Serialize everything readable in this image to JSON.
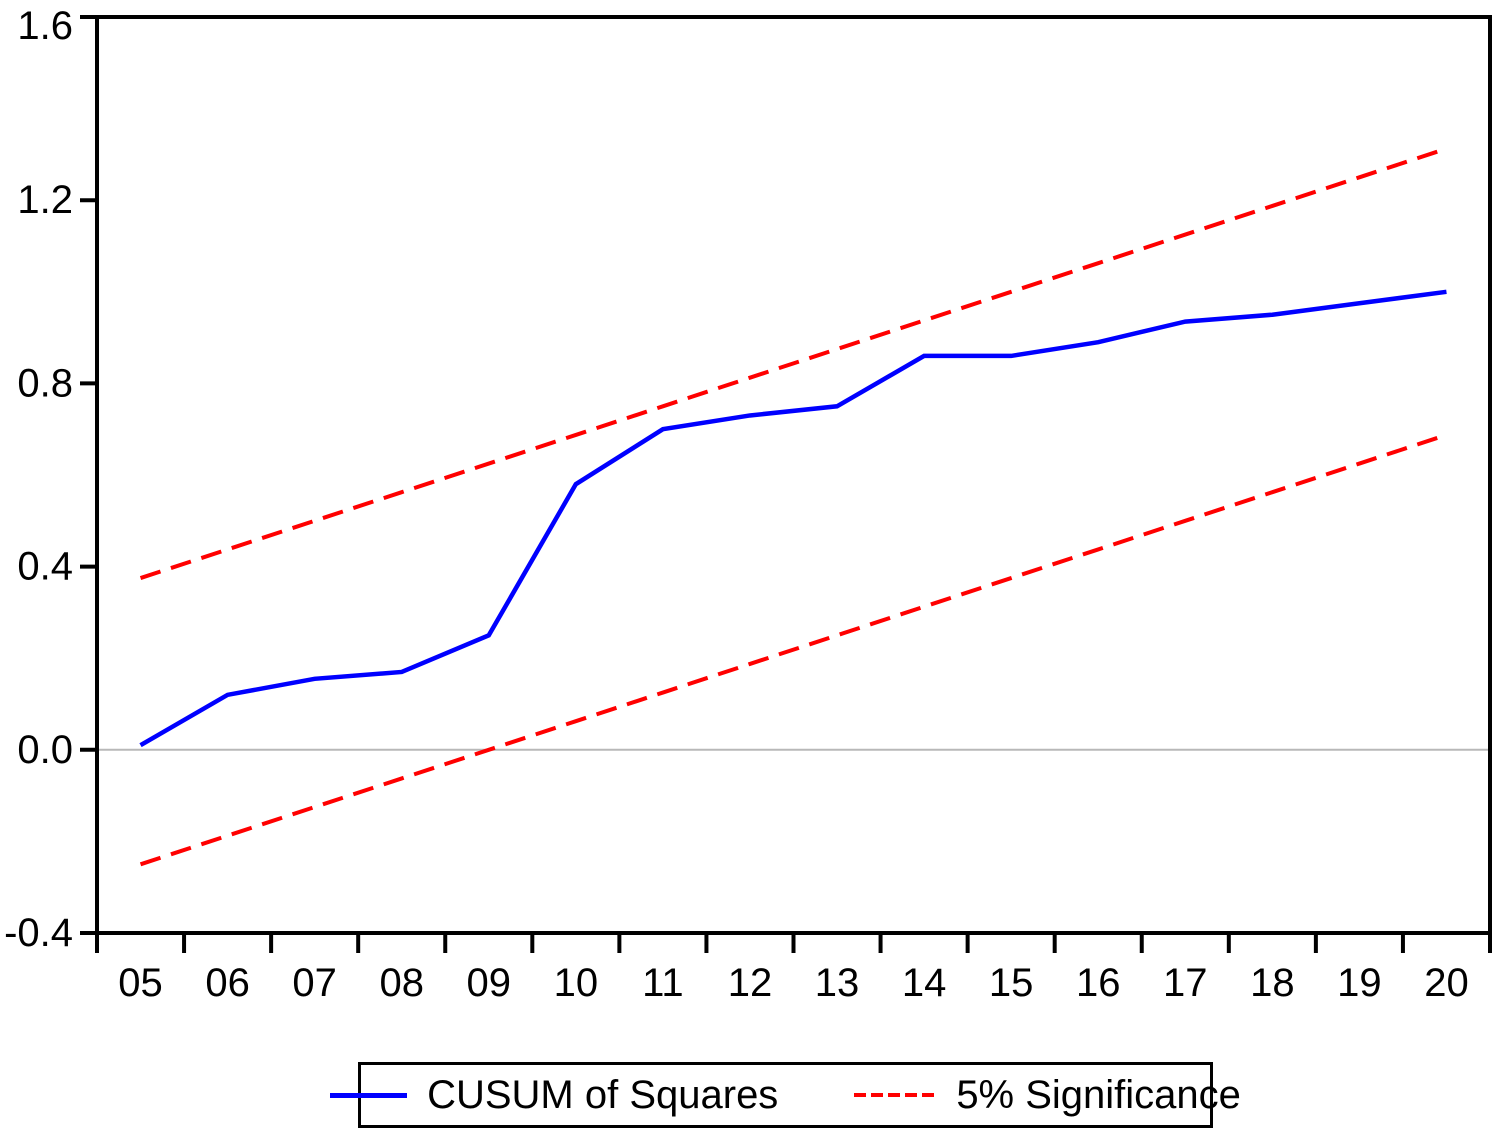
{
  "figure": {
    "title": "",
    "legend": {
      "position": "bottom",
      "items": [
        {
          "label": "CUSUM of Squares",
          "color": "#0000ff",
          "style": "solid"
        },
        {
          "label": "5% Significance",
          "color": "#ff0000",
          "style": "dashed"
        }
      ]
    }
  },
  "chart_data": {
    "type": "line",
    "title": "",
    "xlabel": "",
    "ylabel": "",
    "x": [
      "05",
      "06",
      "07",
      "08",
      "09",
      "10",
      "11",
      "12",
      "13",
      "14",
      "15",
      "16",
      "17",
      "18",
      "19",
      "20"
    ],
    "series": [
      {
        "name": "CUSUM of Squares",
        "color": "#0000ff",
        "style": "solid",
        "width": 4.5,
        "values": [
          0.01,
          0.12,
          0.155,
          0.17,
          0.25,
          0.58,
          0.7,
          0.73,
          0.75,
          0.86,
          0.86,
          0.89,
          0.935,
          0.95,
          0.975,
          1.0
        ]
      },
      {
        "name": "5% Significance (upper bound)",
        "color": "#ff0000",
        "style": "dashed",
        "width": 4,
        "values": [
          0.375,
          0.4375,
          0.5,
          0.5625,
          0.625,
          0.6875,
          0.75,
          0.8125,
          0.875,
          0.9375,
          1.0,
          1.0625,
          1.125,
          1.1875,
          1.25,
          1.3125
        ]
      },
      {
        "name": "5% Significance (lower bound)",
        "color": "#ff0000",
        "style": "dashed",
        "width": 4,
        "values": [
          -0.25,
          -0.1875,
          -0.125,
          -0.0625,
          0.0,
          0.0625,
          0.125,
          0.1875,
          0.25,
          0.3125,
          0.375,
          0.4375,
          0.5,
          0.5625,
          0.625,
          0.6875
        ]
      }
    ],
    "ylim": [
      -0.4,
      1.6
    ],
    "yticks": [
      "1.6",
      "1.2",
      "0.8",
      "0.4",
      "0.0",
      "-0.4"
    ],
    "zero_line": 0.0,
    "grid": "horizontal-zero-line-only",
    "legend_position": "bottom",
    "colors": {
      "zero_line": "#b8b8b8",
      "frame": "#000000",
      "tick_label": "#000000"
    }
  }
}
